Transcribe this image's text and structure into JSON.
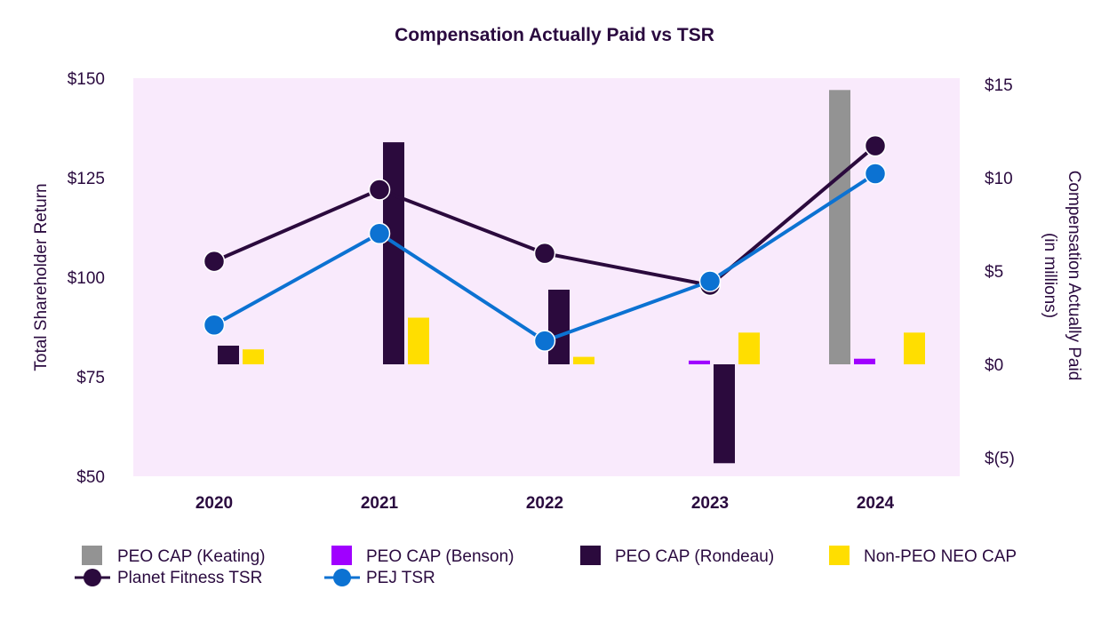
{
  "chart_data": {
    "type": "bar",
    "title": "Compensation Actually Paid vs TSR",
    "categories": [
      "2020",
      "2021",
      "2022",
      "2023",
      "2024"
    ],
    "y_left": {
      "label": "Total Shareholder Return",
      "range": [
        50,
        150
      ],
      "ticks": [
        150,
        125,
        100,
        75,
        50
      ],
      "tick_labels": [
        "$150",
        "$125",
        "$100",
        "$75",
        "$50"
      ]
    },
    "y_right": {
      "label_line1": "Compensation Actually Paid",
      "label_line2": "(in millions)",
      "range": [
        -6,
        15
      ],
      "ticks": [
        15,
        10,
        5,
        0,
        -5
      ],
      "tick_labels": [
        "$15",
        "$10",
        "$5",
        "$0",
        "$(5)"
      ]
    },
    "bar_series": [
      {
        "name": "PEO CAP (Keating)",
        "color": "#939393",
        "values": [
          null,
          null,
          null,
          null,
          14.7
        ]
      },
      {
        "name": "PEO CAP (Benson)",
        "color": "#a000ff",
        "values": [
          null,
          null,
          null,
          0.2,
          0.3
        ]
      },
      {
        "name": "PEO CAP (Rondeau)",
        "color": "#2b0a3d",
        "values": [
          1.0,
          11.9,
          4.0,
          -5.3,
          null
        ]
      },
      {
        "name": "Non-PEO NEO CAP",
        "color": "#ffde00",
        "values": [
          0.8,
          2.5,
          0.4,
          1.7,
          1.7
        ]
      }
    ],
    "line_series": [
      {
        "name": "Planet Fitness TSR",
        "color": "#2b0a3d",
        "values": [
          104,
          122,
          106,
          98,
          133
        ]
      },
      {
        "name": "PEJ TSR",
        "color": "#0c72d2",
        "values": [
          88,
          111,
          84,
          99,
          126
        ]
      }
    ],
    "legend_position": "bottom"
  }
}
